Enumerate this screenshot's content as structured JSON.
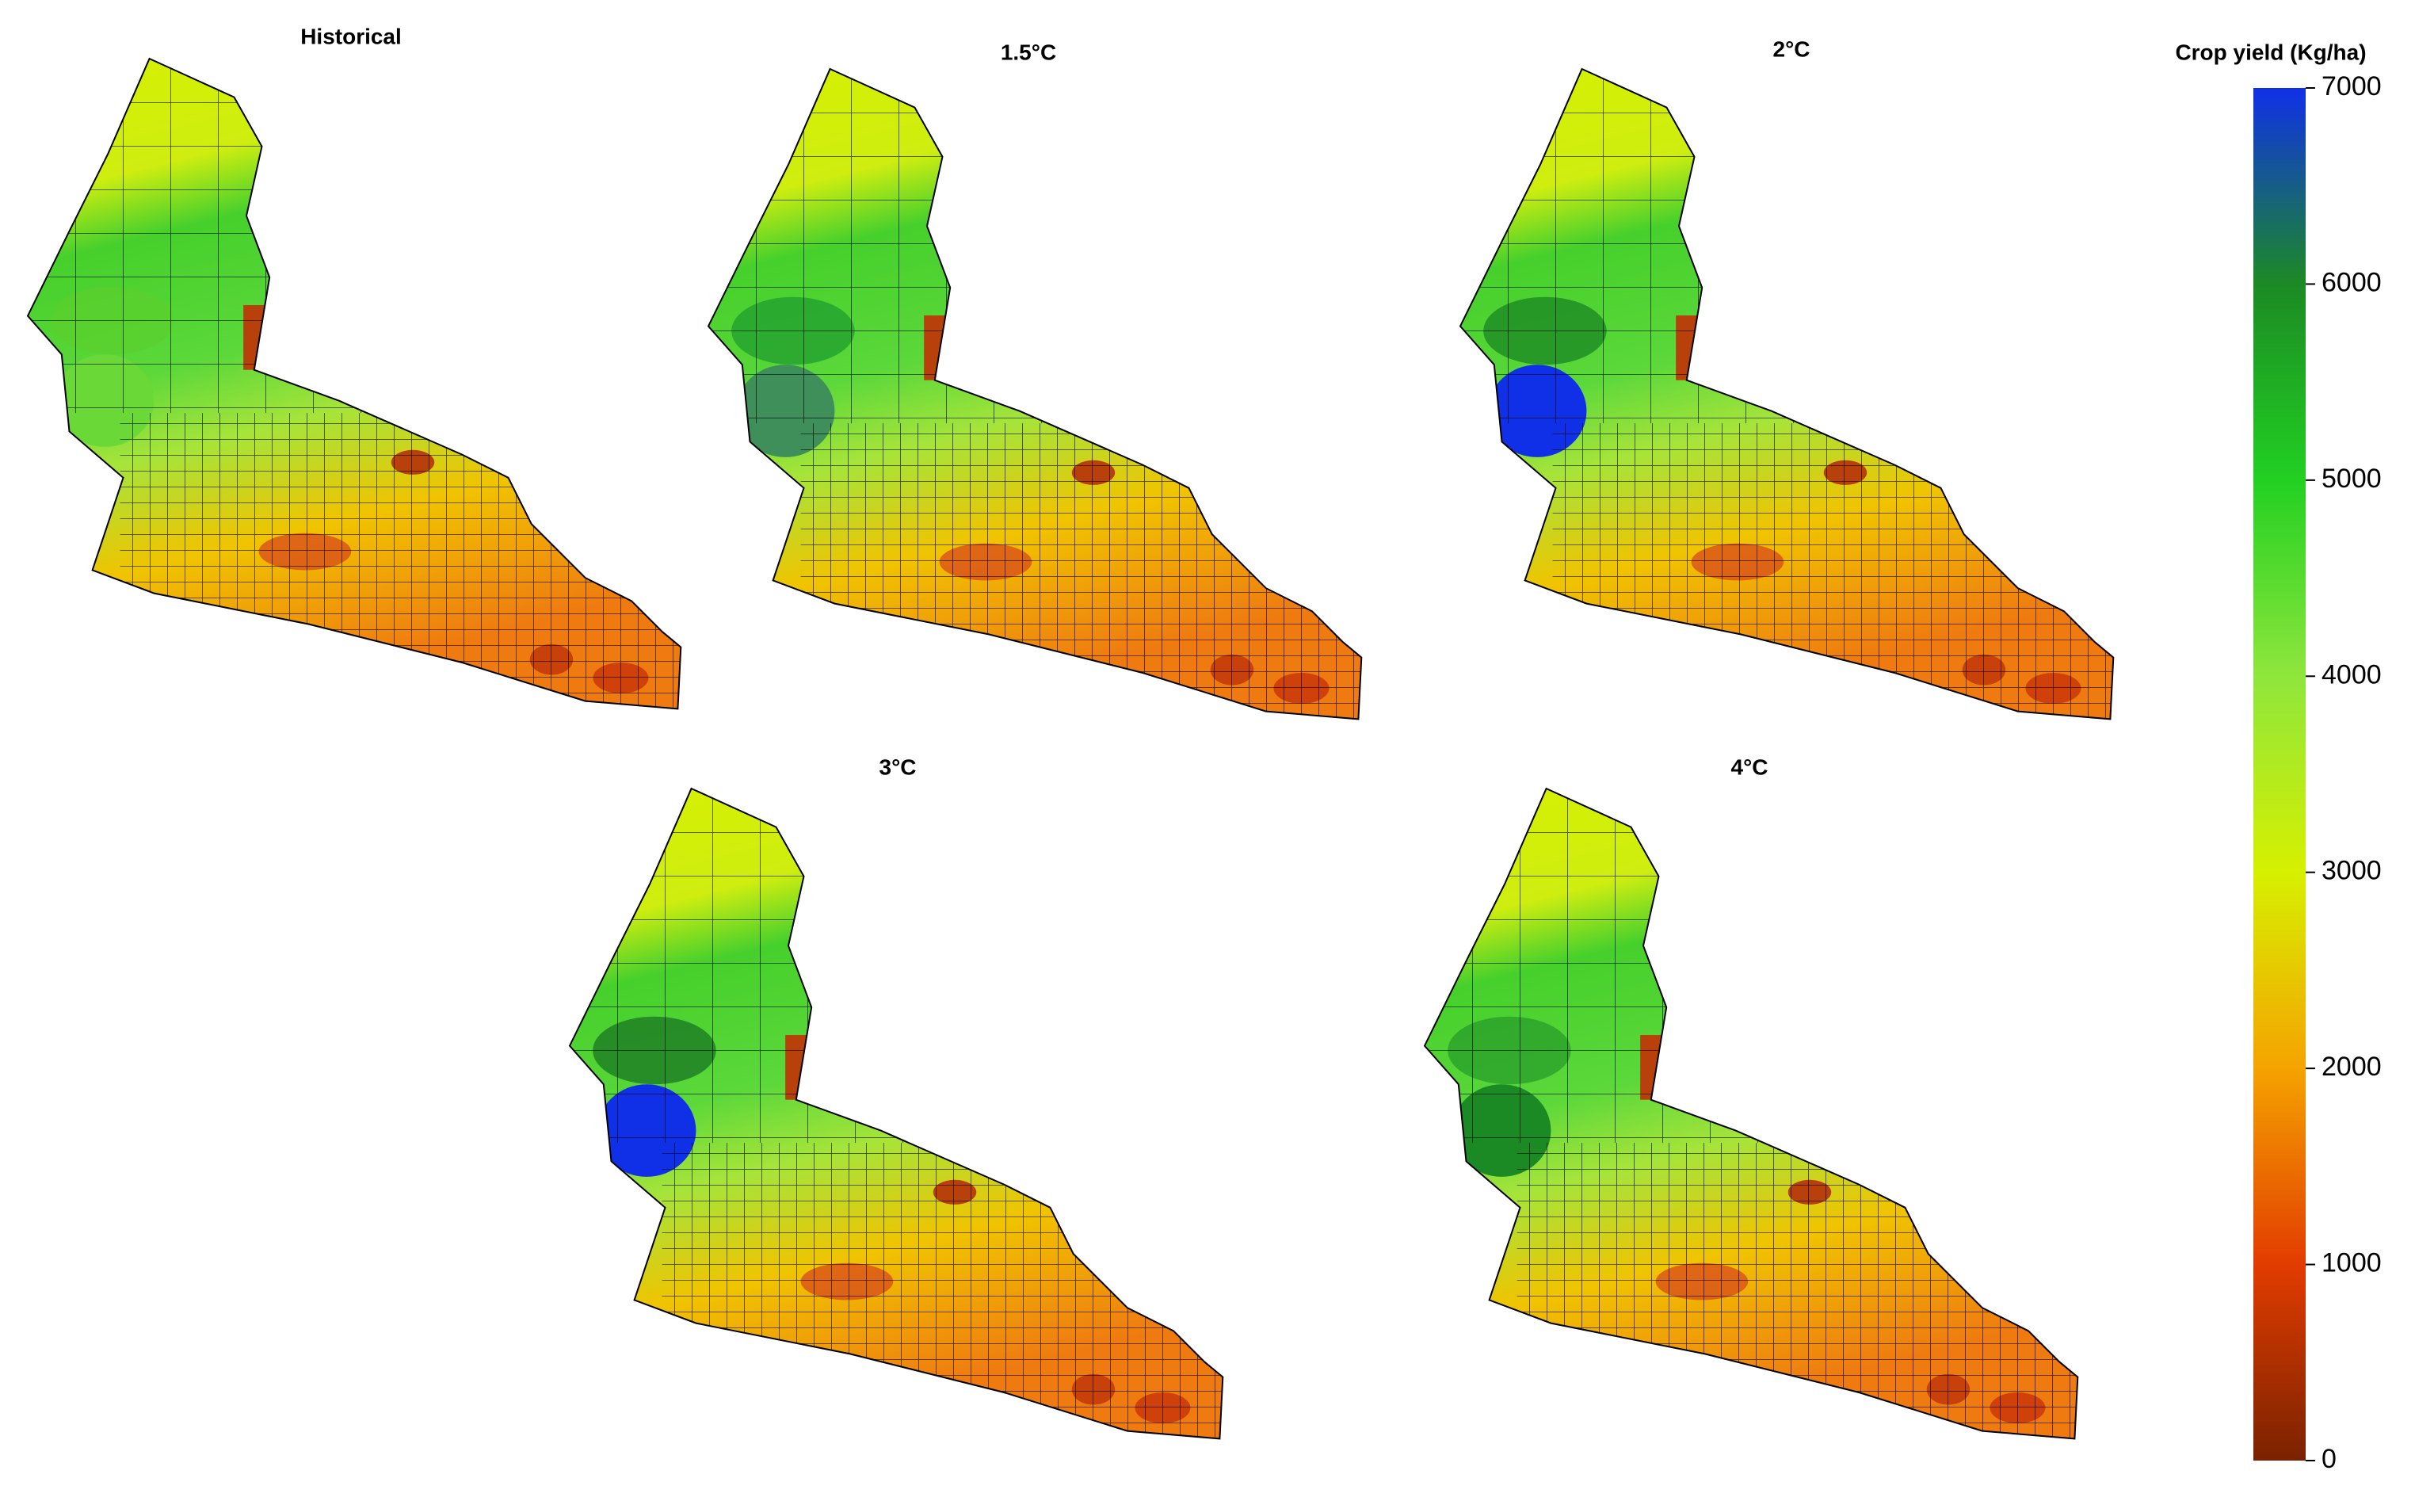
{
  "panels": [
    {
      "title": "Historical"
    },
    {
      "title": "1.5°C"
    },
    {
      "title": "2°C"
    },
    {
      "title": "3°C"
    },
    {
      "title": "4°C"
    }
  ],
  "legend": {
    "title": "Crop yield (Kg/ha)",
    "range": [
      0,
      7000
    ],
    "ticks": [
      0,
      1000,
      2000,
      3000,
      4000,
      5000,
      6000,
      7000
    ],
    "colors": [
      "#7a2200",
      "#e23c00",
      "#f5a300",
      "#d6f000",
      "#8fe63c",
      "#22d022",
      "#1c8a24",
      "#1030e8"
    ]
  }
}
